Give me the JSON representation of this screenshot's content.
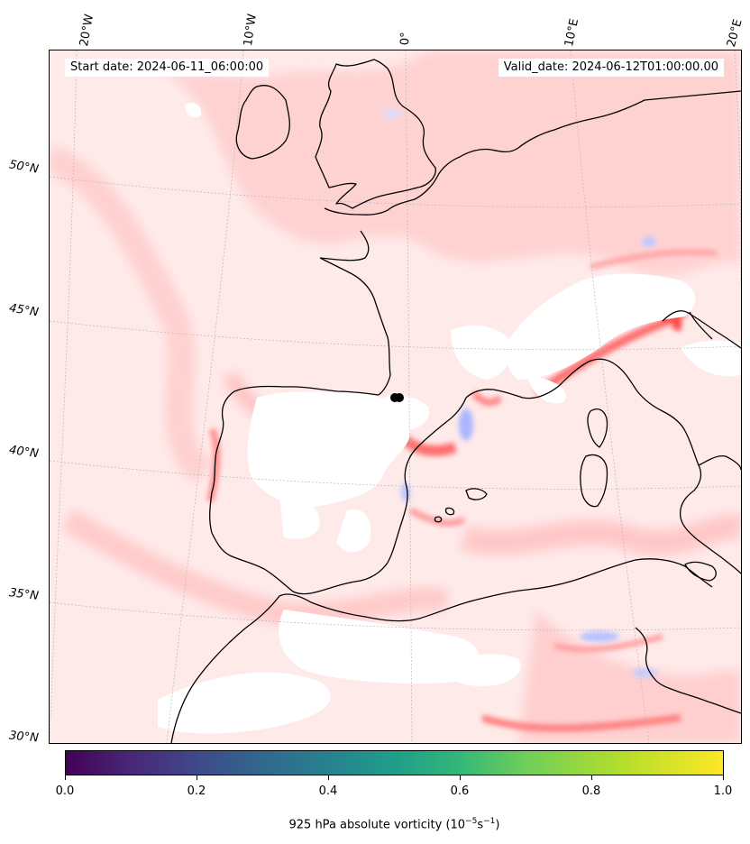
{
  "map": {
    "start_date": "Start date: 2024-06-11_06:00:00",
    "valid_date": "Valid_date: 2024-06-12T01:00:00.00",
    "longitude_labels": [
      "20°W",
      "10°W",
      "0°",
      "10°E",
      "20°E"
    ],
    "latitude_labels": [
      "50°N",
      "45°N",
      "40°N",
      "35°N",
      "30°N"
    ],
    "field": "925 hPa absolute vorticity",
    "palette": {
      "positive": "#ff4d4d",
      "negative": "#4d6bff",
      "land_outline": "#000000",
      "grid": "#b0b0b0"
    }
  },
  "colorbar": {
    "title": "925 hPa absolute vorticity (10",
    "title_exp1": "−5",
    "title_mid": "s",
    "title_exp2": "−1",
    "title_end": ")",
    "ticks": [
      "0.0",
      "0.2",
      "0.4",
      "0.6",
      "0.8",
      "1.0"
    ],
    "colormap": "viridis"
  }
}
